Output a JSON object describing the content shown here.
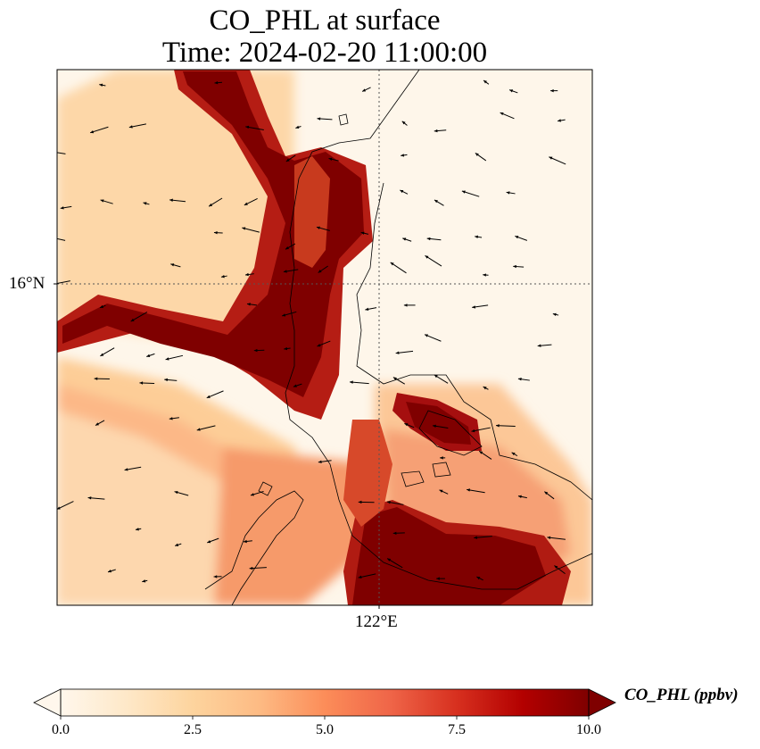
{
  "title": {
    "line1": "CO_PHL at surface",
    "line2": "Time: 2024-02-20 11:00:00"
  },
  "map": {
    "variable": "CO_PHL",
    "level": "surface",
    "gridlines": {
      "latitude": "16°N",
      "longitude": "122°E",
      "style": "dotted"
    },
    "colormap": "OrRd",
    "features": [
      "coastline",
      "wind vectors",
      "gridded CO concentration field"
    ]
  },
  "axes": {
    "lat_label": "16°N",
    "lon_label": "122°E"
  },
  "colorbar": {
    "label": "CO_PHL (ppbv)",
    "ticks": [
      "0.0",
      "2.5",
      "5.0",
      "7.5",
      "10.0"
    ],
    "min": 0,
    "max": 10,
    "extend": "both",
    "colors": [
      "#fff7ec",
      "#fee8c8",
      "#fdd49e",
      "#fdbb84",
      "#fc8d59",
      "#ef6548",
      "#d7301f",
      "#b30000",
      "#7f0000"
    ]
  }
}
